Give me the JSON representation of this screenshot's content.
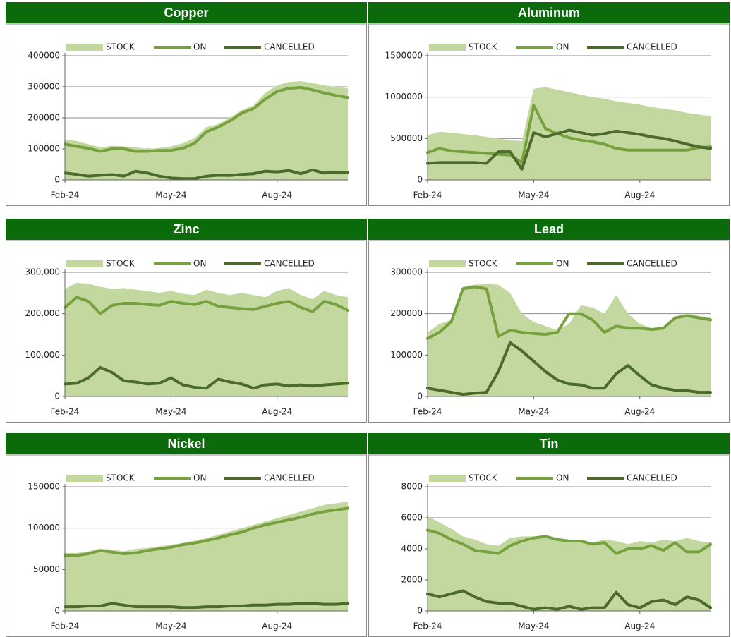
{
  "chart_data": [
    {
      "type": "line",
      "title": "Copper",
      "legend": "top",
      "grid": true,
      "categories": [
        "Feb-24",
        null,
        null,
        null,
        null,
        null,
        null,
        null,
        null,
        "May-24",
        null,
        null,
        null,
        null,
        null,
        null,
        null,
        null,
        "Aug-24",
        null,
        null,
        null,
        null,
        null,
        null
      ],
      "ylim": [
        0,
        400000
      ],
      "yticks": [
        0,
        100000,
        200000,
        300000,
        400000
      ],
      "series": [
        {
          "name": "STOCK",
          "kind": "area",
          "color": "#c3d89f",
          "values": [
            130000,
            125000,
            115000,
            105000,
            110000,
            108000,
            105000,
            100000,
            103000,
            108000,
            118000,
            135000,
            170000,
            180000,
            200000,
            225000,
            240000,
            280000,
            305000,
            315000,
            318000,
            312000,
            305000,
            300000,
            295000
          ]
        },
        {
          "name": "ON",
          "kind": "line",
          "color": "#76a13e",
          "values": [
            115000,
            108000,
            102000,
            92000,
            100000,
            100000,
            92000,
            92000,
            95000,
            95000,
            102000,
            118000,
            155000,
            170000,
            190000,
            215000,
            230000,
            260000,
            285000,
            295000,
            298000,
            290000,
            280000,
            272000,
            265000
          ]
        },
        {
          "name": "CANCELLED",
          "kind": "line",
          "color": "#4b6b2b",
          "values": [
            22000,
            18000,
            12000,
            15000,
            17000,
            12000,
            28000,
            22000,
            12000,
            6000,
            4000,
            4000,
            12000,
            15000,
            14000,
            18000,
            20000,
            28000,
            26000,
            30000,
            20000,
            32000,
            22000,
            25000,
            24000
          ]
        }
      ]
    },
    {
      "type": "line",
      "title": "Aluminum",
      "legend": "top",
      "grid": true,
      "categories": [
        "Feb-24",
        null,
        null,
        null,
        null,
        null,
        null,
        null,
        null,
        "May-24",
        null,
        null,
        null,
        null,
        null,
        null,
        null,
        null,
        "Aug-24",
        null,
        null,
        null,
        null,
        null,
        null
      ],
      "ylim": [
        0,
        1500000
      ],
      "yticks": [
        0,
        500000,
        1000000,
        1500000
      ],
      "series": [
        {
          "name": "STOCK",
          "kind": "area",
          "color": "#c3d89f",
          "values": [
            540000,
            580000,
            570000,
            555000,
            540000,
            520000,
            500000,
            480000,
            470000,
            1100000,
            1120000,
            1090000,
            1060000,
            1030000,
            1000000,
            980000,
            950000,
            930000,
            910000,
            880000,
            860000,
            840000,
            810000,
            790000,
            770000
          ]
        },
        {
          "name": "ON",
          "kind": "line",
          "color": "#76a13e",
          "values": [
            330000,
            380000,
            350000,
            340000,
            330000,
            320000,
            310000,
            300000,
            210000,
            900000,
            620000,
            560000,
            510000,
            480000,
            460000,
            430000,
            380000,
            360000,
            360000,
            360000,
            360000,
            360000,
            360000,
            390000,
            400000
          ]
        },
        {
          "name": "CANCELLED",
          "kind": "line",
          "color": "#4b6b2b",
          "values": [
            200000,
            210000,
            210000,
            210000,
            210000,
            200000,
            340000,
            340000,
            130000,
            570000,
            520000,
            560000,
            600000,
            570000,
            540000,
            560000,
            590000,
            570000,
            550000,
            520000,
            500000,
            470000,
            430000,
            400000,
            380000
          ]
        }
      ]
    },
    {
      "type": "line",
      "title": "Zinc",
      "legend": "top",
      "grid": true,
      "categories": [
        "Feb-24",
        null,
        null,
        null,
        null,
        null,
        null,
        null,
        null,
        "May-24",
        null,
        null,
        null,
        null,
        null,
        null,
        null,
        null,
        "Aug-24",
        null,
        null,
        null,
        null,
        null,
        null
      ],
      "ylim": [
        0,
        300000
      ],
      "yticks": [
        0,
        {
          "value": 100000,
          "label": "100,000"
        },
        {
          "value": 200000,
          "label": "200,000"
        },
        {
          "value": 300000,
          "label": "300,000"
        }
      ],
      "series": [
        {
          "name": "STOCK",
          "kind": "area",
          "color": "#c3d89f",
          "values": [
            260000,
            275000,
            272000,
            265000,
            260000,
            262000,
            258000,
            255000,
            250000,
            255000,
            248000,
            245000,
            258000,
            250000,
            245000,
            250000,
            245000,
            240000,
            255000,
            262000,
            245000,
            235000,
            255000,
            245000,
            240000
          ]
        },
        {
          "name": "ON",
          "kind": "line",
          "color": "#76a13e",
          "values": [
            215000,
            240000,
            230000,
            200000,
            220000,
            225000,
            225000,
            222000,
            220000,
            230000,
            225000,
            222000,
            230000,
            218000,
            215000,
            212000,
            210000,
            218000,
            225000,
            230000,
            215000,
            205000,
            230000,
            222000,
            208000
          ]
        },
        {
          "name": "CANCELLED",
          "kind": "line",
          "color": "#4b6b2b",
          "values": [
            30000,
            32000,
            45000,
            70000,
            58000,
            38000,
            35000,
            30000,
            32000,
            45000,
            28000,
            22000,
            20000,
            42000,
            35000,
            30000,
            20000,
            28000,
            30000,
            25000,
            28000,
            25000,
            28000,
            30000,
            32000
          ]
        }
      ]
    },
    {
      "type": "line",
      "title": "Lead",
      "legend": "top",
      "grid": true,
      "categories": [
        "Feb-24",
        null,
        null,
        null,
        null,
        null,
        null,
        null,
        null,
        "May-24",
        null,
        null,
        null,
        null,
        null,
        null,
        null,
        null,
        "Aug-24",
        null,
        null,
        null,
        null,
        null,
        null
      ],
      "ylim": [
        0,
        300000
      ],
      "yticks": [
        0,
        100000,
        200000,
        300000
      ],
      "series": [
        {
          "name": "STOCK",
          "kind": "area",
          "color": "#c3d89f",
          "values": [
            155000,
            175000,
            185000,
            265000,
            270000,
            272000,
            270000,
            250000,
            200000,
            180000,
            170000,
            160000,
            175000,
            220000,
            215000,
            200000,
            245000,
            200000,
            175000,
            165000,
            165000,
            190000,
            200000,
            195000,
            190000
          ]
        },
        {
          "name": "ON",
          "kind": "line",
          "color": "#76a13e",
          "values": [
            140000,
            155000,
            180000,
            260000,
            265000,
            260000,
            145000,
            160000,
            155000,
            152000,
            150000,
            155000,
            200000,
            200000,
            185000,
            155000,
            170000,
            165000,
            165000,
            162000,
            165000,
            190000,
            195000,
            190000,
            185000
          ]
        },
        {
          "name": "CANCELLED",
          "kind": "line",
          "color": "#4b6b2b",
          "values": [
            20000,
            15000,
            10000,
            5000,
            8000,
            10000,
            60000,
            130000,
            110000,
            85000,
            60000,
            40000,
            30000,
            28000,
            20000,
            20000,
            55000,
            75000,
            50000,
            28000,
            20000,
            15000,
            14000,
            10000,
            10000
          ]
        }
      ]
    },
    {
      "type": "line",
      "title": "Nickel",
      "legend": "top",
      "grid": true,
      "categories": [
        "Feb-24",
        null,
        null,
        null,
        null,
        null,
        null,
        null,
        null,
        "May-24",
        null,
        null,
        null,
        null,
        null,
        null,
        null,
        null,
        "Aug-24",
        null,
        null,
        null,
        null,
        null,
        null
      ],
      "ylim": [
        0,
        150000
      ],
      "yticks": [
        0,
        50000,
        100000,
        150000
      ],
      "series": [
        {
          "name": "STOCK",
          "kind": "area",
          "color": "#c3d89f",
          "values": [
            70000,
            70000,
            72000,
            75000,
            74000,
            72000,
            75000,
            76000,
            78000,
            80000,
            82000,
            85000,
            88000,
            92000,
            96000,
            100000,
            104000,
            108000,
            112000,
            116000,
            120000,
            124000,
            128000,
            130000,
            132000
          ]
        },
        {
          "name": "ON",
          "kind": "line",
          "color": "#76a13e",
          "values": [
            67000,
            67000,
            69000,
            73000,
            71000,
            69000,
            70000,
            73000,
            75000,
            77000,
            80000,
            82000,
            85000,
            88000,
            92000,
            95000,
            100000,
            104000,
            107000,
            110000,
            113000,
            117000,
            120000,
            122000,
            124000
          ]
        },
        {
          "name": "CANCELLED",
          "kind": "line",
          "color": "#4b6b2b",
          "values": [
            5000,
            5000,
            6000,
            6000,
            9000,
            7000,
            5000,
            5000,
            5000,
            5000,
            4000,
            4000,
            5000,
            5000,
            6000,
            6000,
            7000,
            7000,
            8000,
            8000,
            9000,
            9000,
            8000,
            8000,
            9000
          ]
        }
      ]
    },
    {
      "type": "line",
      "title": "Tin",
      "legend": "top",
      "grid": true,
      "categories": [
        "Feb-24",
        null,
        null,
        null,
        null,
        null,
        null,
        null,
        null,
        "May-24",
        null,
        null,
        null,
        null,
        null,
        null,
        null,
        null,
        "Aug-24",
        null,
        null,
        null,
        null,
        null,
        null
      ],
      "ylim": [
        0,
        8000
      ],
      "yticks": [
        0,
        2000,
        4000,
        6000,
        8000
      ],
      "series": [
        {
          "name": "STOCK",
          "kind": "area",
          "color": "#c3d89f",
          "values": [
            6100,
            5700,
            5300,
            4800,
            4600,
            4300,
            4200,
            4700,
            4800,
            4800,
            4700,
            4700,
            4600,
            4500,
            4400,
            4600,
            4500,
            4300,
            4500,
            4400,
            4600,
            4500,
            4700,
            4500,
            4400
          ]
        },
        {
          "name": "ON",
          "kind": "line",
          "color": "#76a13e",
          "values": [
            5200,
            5000,
            4600,
            4300,
            3900,
            3800,
            3700,
            4200,
            4500,
            4700,
            4800,
            4600,
            4500,
            4500,
            4300,
            4400,
            3700,
            4000,
            4000,
            4200,
            3900,
            4400,
            3800,
            3800,
            4300
          ]
        },
        {
          "name": "CANCELLED",
          "kind": "line",
          "color": "#4b6b2b",
          "values": [
            1100,
            900,
            1100,
            1300,
            900,
            600,
            500,
            500,
            300,
            100,
            200,
            100,
            300,
            100,
            200,
            200,
            1200,
            400,
            200,
            600,
            700,
            400,
            900,
            700,
            200
          ]
        }
      ]
    }
  ]
}
